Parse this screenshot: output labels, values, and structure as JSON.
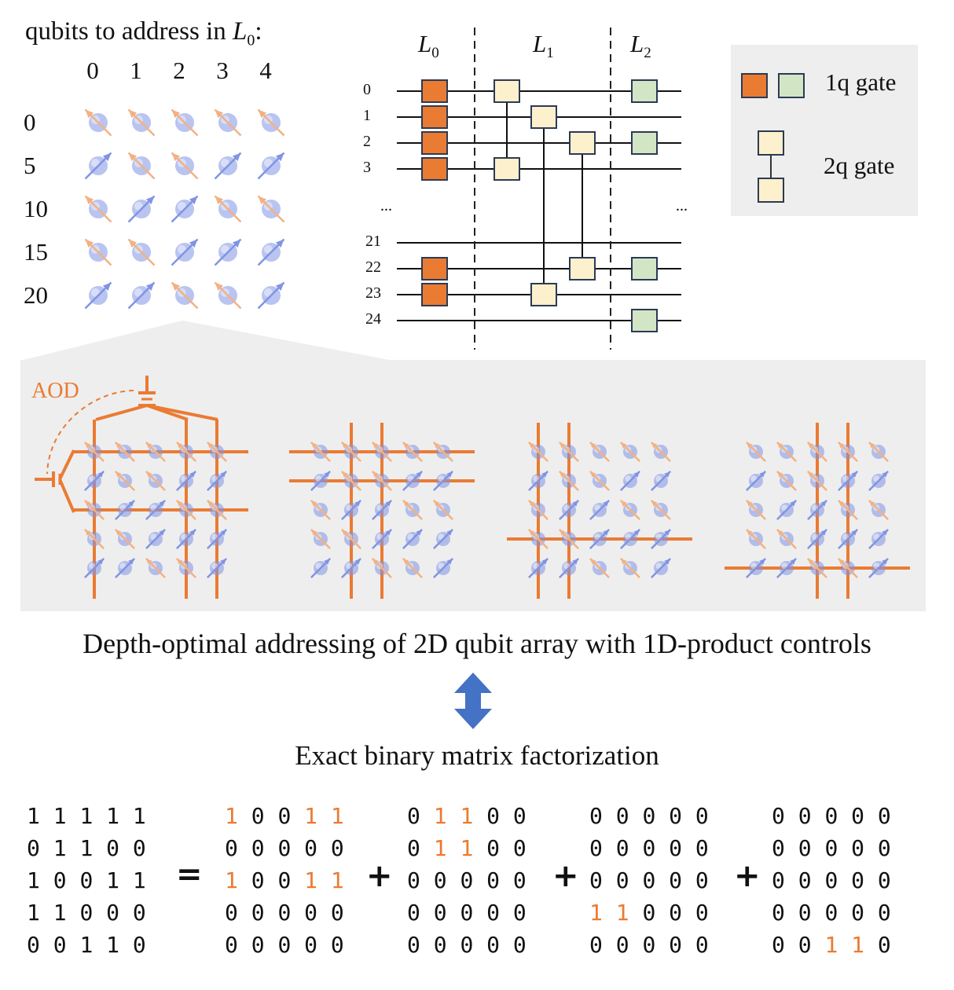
{
  "top_left": {
    "title_prefix": "qubits to address in ",
    "title_var": "L",
    "title_sub": "0",
    "title_suffix": ":",
    "col_headers": [
      "0",
      "1",
      "2",
      "3",
      "4"
    ],
    "row_headers": [
      "0",
      "5",
      "10",
      "15",
      "20"
    ],
    "spin_grid": [
      [
        "up",
        "up",
        "up",
        "up",
        "up"
      ],
      [
        "down",
        "up",
        "up",
        "down",
        "down"
      ],
      [
        "up",
        "down",
        "down",
        "up",
        "up"
      ],
      [
        "up",
        "up",
        "down",
        "down",
        "down"
      ],
      [
        "down",
        "down",
        "up",
        "up",
        "down"
      ]
    ]
  },
  "circuit": {
    "layers": [
      {
        "var": "L",
        "sub": "0"
      },
      {
        "var": "L",
        "sub": "1"
      },
      {
        "var": "L",
        "sub": "2"
      }
    ],
    "wire_labels": [
      "0",
      "1",
      "2",
      "3",
      "21",
      "22",
      "23",
      "24"
    ],
    "ellipsis": "...",
    "l0_gates_on_wires": [
      "0",
      "1",
      "2",
      "3",
      "22",
      "23"
    ],
    "l2_gates_on_wires": [
      "0",
      "2",
      "22",
      "24"
    ],
    "l1_two_qubit_gates": [
      [
        "0",
        "3"
      ],
      [
        "1",
        "23"
      ],
      [
        "2",
        "22"
      ]
    ]
  },
  "legend": {
    "one_q_label": "1q gate",
    "two_q_label": "2q gate"
  },
  "aod_panel": {
    "aod_label": "AOD",
    "steps": [
      {
        "orange_rows": [
          0,
          2
        ],
        "orange_cols": [
          0,
          3,
          4
        ]
      },
      {
        "orange_rows": [
          0,
          1
        ],
        "orange_cols": [
          1,
          2
        ]
      },
      {
        "orange_rows": [
          3
        ],
        "orange_cols": [
          0,
          1
        ]
      },
      {
        "orange_rows": [
          4
        ],
        "orange_cols": [
          2,
          3
        ]
      }
    ]
  },
  "caption_main": "Depth-optimal addressing of 2D qubit array with 1D-product controls",
  "caption_factorization": "Exact binary matrix factorization",
  "factorization": {
    "equals": "=",
    "plus": "+",
    "target": [
      [
        1,
        1,
        1,
        1,
        1
      ],
      [
        0,
        1,
        1,
        0,
        0
      ],
      [
        1,
        0,
        0,
        1,
        1
      ],
      [
        1,
        1,
        0,
        0,
        0
      ],
      [
        0,
        0,
        1,
        1,
        0
      ]
    ],
    "terms": [
      [
        [
          1,
          0,
          0,
          1,
          1
        ],
        [
          0,
          0,
          0,
          0,
          0
        ],
        [
          1,
          0,
          0,
          1,
          1
        ],
        [
          0,
          0,
          0,
          0,
          0
        ],
        [
          0,
          0,
          0,
          0,
          0
        ]
      ],
      [
        [
          0,
          1,
          1,
          0,
          0
        ],
        [
          0,
          1,
          1,
          0,
          0
        ],
        [
          0,
          0,
          0,
          0,
          0
        ],
        [
          0,
          0,
          0,
          0,
          0
        ],
        [
          0,
          0,
          0,
          0,
          0
        ]
      ],
      [
        [
          0,
          0,
          0,
          0,
          0
        ],
        [
          0,
          0,
          0,
          0,
          0
        ],
        [
          0,
          0,
          0,
          0,
          0
        ],
        [
          1,
          1,
          0,
          0,
          0
        ],
        [
          0,
          0,
          0,
          0,
          0
        ]
      ],
      [
        [
          0,
          0,
          0,
          0,
          0
        ],
        [
          0,
          0,
          0,
          0,
          0
        ],
        [
          0,
          0,
          0,
          0,
          0
        ],
        [
          0,
          0,
          0,
          0,
          0
        ],
        [
          0,
          0,
          1,
          1,
          0
        ]
      ]
    ]
  },
  "colors": {
    "aod_orange": "#ea7b33",
    "gate_1q_l0": "#ea7b33",
    "gate_1q_l2": "#d2e6c6",
    "gate_2q": "#fdf0cc",
    "spin_blue": "#8094e4",
    "spin_peach": "#f3b183",
    "panel_gray": "#eeeeee",
    "arrow_blue": "#4472c4"
  }
}
